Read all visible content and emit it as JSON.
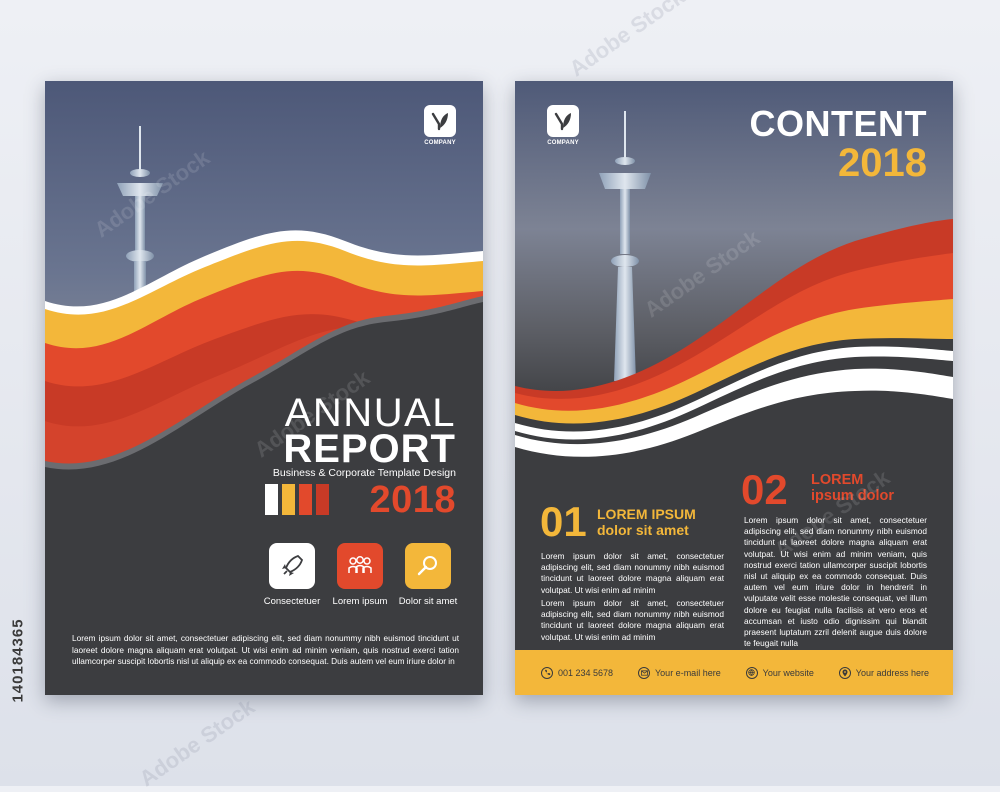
{
  "left_page": {
    "logo_text": "COMPANY",
    "title_line1": "ANNUAL",
    "title_line2": "REPORT",
    "subtitle": "Business & Corporate Template Design",
    "year": "2018",
    "features": [
      {
        "label": "Consectetuer",
        "icon": "rocket-icon",
        "bg": "#ffffff"
      },
      {
        "label": "Lorem ipsum",
        "icon": "team-icon",
        "bg": "#e2492c"
      },
      {
        "label": "Dolor sit amet",
        "icon": "magnifier-icon",
        "bg": "#f3b73a"
      }
    ],
    "body_text": "Lorem ipsum dolor sit amet, consectetuer adipiscing elit, sed diam nonummy nibh euismod tincidunt ut laoreet dolore magna aliquam erat volutpat. Ut wisi enim ad minim veniam, quis nostrud exerci tation ullamcorper suscipit lobortis nisl ut aliquip ex ea commodo consequat. Duis autem vel eum iriure dolor in"
  },
  "right_page": {
    "logo_text": "COMPANY",
    "title": "CONTENT",
    "year": "2018",
    "section1": {
      "number": "01",
      "heading_line1": "LOREM IPSUM",
      "heading_line2": "dolor sit amet",
      "paragraph1": "Lorem ipsum dolor sit amet, consectetuer adipiscing elit, sed diam nonummy nibh euismod tincidunt ut laoreet dolore magna aliquam erat volutpat. Ut wisi enim ad minim",
      "paragraph2": "Lorem ipsum dolor sit amet, consectetuer adipiscing elit, sed diam nonummy nibh euismod tincidunt ut laoreet dolore magna aliquam erat volutpat. Ut wisi enim ad minim"
    },
    "section2": {
      "number": "02",
      "heading_line1": "LOREM",
      "heading_line2": "ipsum dolor",
      "paragraph": "Lorem ipsum dolor sit amet, consectetuer adipiscing elit, sed diam nonummy nibh euismod tincidunt ut laoreet dolore magna aliquam erat volutpat. Ut wisi enim ad minim veniam, quis nostrud exerci tation ullamcorper suscipit lobortis nisl ut aliquip ex ea commodo consequat. Duis autem vel eum iriure dolor in hendrerit in vulputate velit esse molestie consequat, vel illum dolore eu feugiat nulla facilisis at vero eros et accumsan et iusto odio dignissim qui blandit praesent luptatum zzril delenit augue duis dolore te feugait nulla"
    },
    "footer": [
      {
        "icon": "phone-icon",
        "text": "001 234 5678"
      },
      {
        "icon": "email-icon",
        "text": "Your e-mail here"
      },
      {
        "icon": "globe-icon",
        "text": "Your website"
      },
      {
        "icon": "location-icon",
        "text": "Your address here"
      }
    ]
  },
  "stock_credit": "140184365",
  "watermark_text": "Adobe Stock",
  "colors": {
    "dark": "#3c3d40",
    "red": "#e2492c",
    "dark_red": "#c83a26",
    "orange": "#f3b73a",
    "sky_top": "#4f5a78",
    "white": "#ffffff"
  }
}
